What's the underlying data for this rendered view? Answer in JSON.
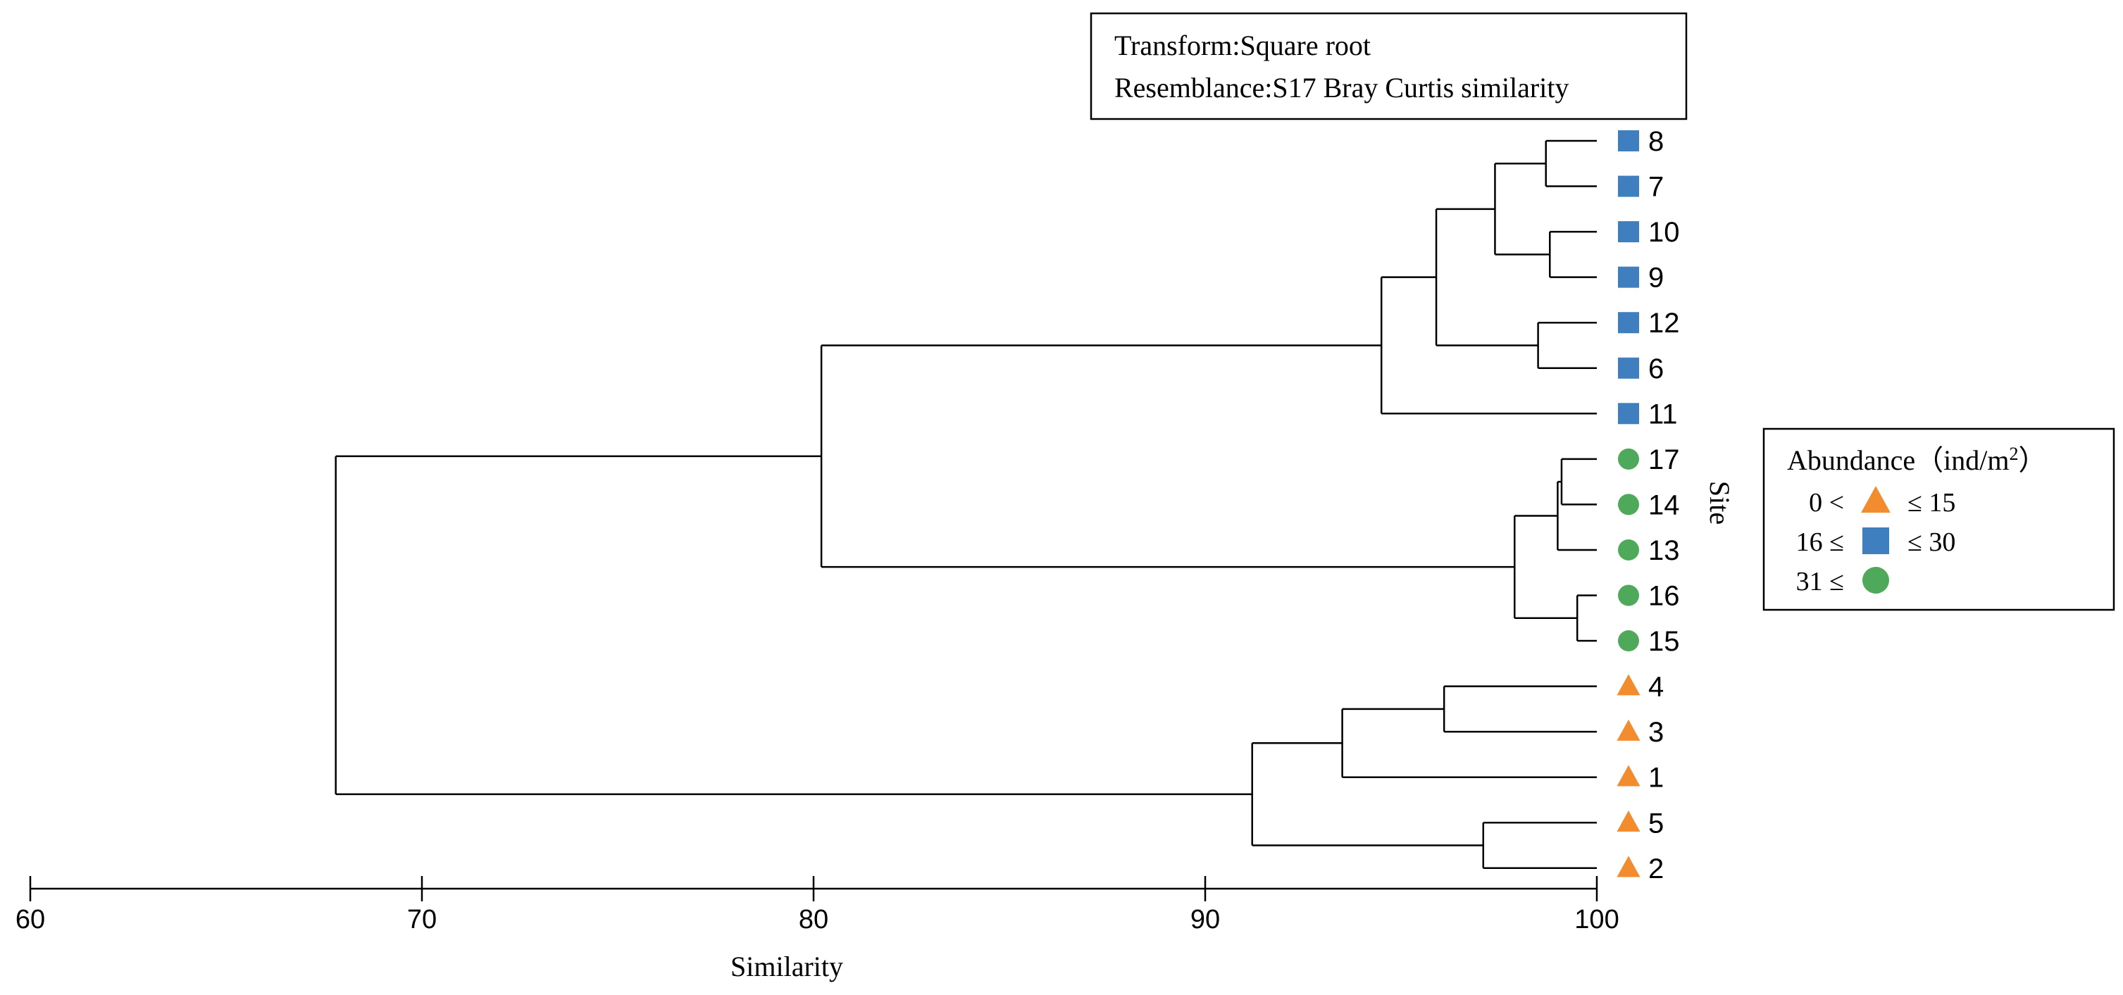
{
  "chart_data": {
    "type": "dendrogram",
    "info_box": {
      "transform": "Transform:Square root",
      "resemblance": "Resemblance:S17 Bray Curtis similarity"
    },
    "xlabel": "Similarity",
    "ylabel": "Site",
    "xlim": [
      60,
      100
    ],
    "x_ticks": [
      "60",
      "70",
      "80",
      "90",
      "100"
    ],
    "leaves": [
      {
        "label": "8",
        "group": "square"
      },
      {
        "label": "7",
        "group": "square"
      },
      {
        "label": "10",
        "group": "square"
      },
      {
        "label": "9",
        "group": "square"
      },
      {
        "label": "12",
        "group": "square"
      },
      {
        "label": "6",
        "group": "square"
      },
      {
        "label": "11",
        "group": "square"
      },
      {
        "label": "17",
        "group": "circle"
      },
      {
        "label": "14",
        "group": "circle"
      },
      {
        "label": "13",
        "group": "circle"
      },
      {
        "label": "16",
        "group": "circle"
      },
      {
        "label": "15",
        "group": "circle"
      },
      {
        "label": "4",
        "group": "triangle"
      },
      {
        "label": "3",
        "group": "triangle"
      },
      {
        "label": "1",
        "group": "triangle"
      },
      {
        "label": "5",
        "group": "triangle"
      },
      {
        "label": "2",
        "group": "triangle"
      }
    ],
    "merges": [
      {
        "id": "a",
        "children": [
          "8",
          "7"
        ],
        "similarity": 98.7
      },
      {
        "id": "b",
        "children": [
          "10",
          "9"
        ],
        "similarity": 98.8
      },
      {
        "id": "c",
        "children": [
          "a",
          "b"
        ],
        "similarity": 97.4
      },
      {
        "id": "d",
        "children": [
          "12",
          "6"
        ],
        "similarity": 98.5
      },
      {
        "id": "e",
        "children": [
          "c",
          "d"
        ],
        "similarity": 95.9
      },
      {
        "id": "f",
        "children": [
          "e",
          "11"
        ],
        "similarity": 94.5
      },
      {
        "id": "g",
        "children": [
          "17",
          "14"
        ],
        "similarity": 99.1
      },
      {
        "id": "h",
        "children": [
          "g",
          "13"
        ],
        "similarity": 99.0
      },
      {
        "id": "i",
        "children": [
          "16",
          "15"
        ],
        "similarity": 99.5
      },
      {
        "id": "j",
        "children": [
          "h",
          "i"
        ],
        "similarity": 97.9
      },
      {
        "id": "k",
        "children": [
          "f",
          "j"
        ],
        "similarity": 80.2
      },
      {
        "id": "l",
        "children": [
          "4",
          "3"
        ],
        "similarity": 96.1
      },
      {
        "id": "m",
        "children": [
          "l",
          "1"
        ],
        "similarity": 93.5
      },
      {
        "id": "n",
        "children": [
          "5",
          "2"
        ],
        "similarity": 97.1
      },
      {
        "id": "o",
        "children": [
          "m",
          "n"
        ],
        "similarity": 91.2
      },
      {
        "id": "p",
        "children": [
          "k",
          "o"
        ],
        "similarity": 67.8
      }
    ],
    "legend": {
      "title": "Abundance（ind/m",
      "title_sup": "2",
      "title_close": "）",
      "placement": "right",
      "entries": [
        {
          "shape": "triangle",
          "prefix": "0 <",
          "suffix": "≤ 15"
        },
        {
          "shape": "square",
          "prefix": "16 ≤",
          "suffix": "≤ 30"
        },
        {
          "shape": "circle",
          "prefix": "31 ≤",
          "suffix": ""
        }
      ]
    },
    "colors": {
      "triangle": "#F28C2E",
      "square": "#3F7FBF",
      "circle": "#4EA95A",
      "line": "#000000"
    }
  }
}
